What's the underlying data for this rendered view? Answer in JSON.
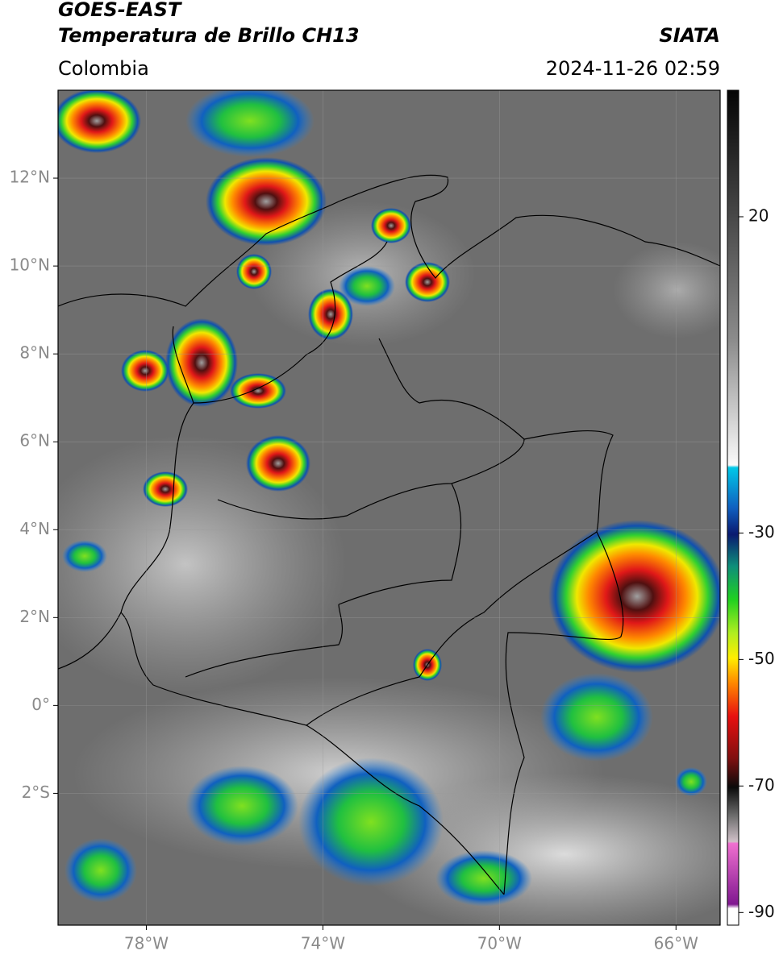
{
  "header": {
    "title": "GOES-EAST",
    "subtitle": "Temperatura de Brillo CH13",
    "source": "SIATA",
    "region": "Colombia",
    "timestamp": "2024-11-26 02:59"
  },
  "map": {
    "xlim": [
      -80,
      -65
    ],
    "ylim": [
      -5,
      14
    ],
    "xticks": [
      {
        "value": -78,
        "label": "78°W"
      },
      {
        "value": -74,
        "label": "74°W"
      },
      {
        "value": -70,
        "label": "70°W"
      },
      {
        "value": -66,
        "label": "66°W"
      }
    ],
    "yticks": [
      {
        "value": 12,
        "label": "12°N"
      },
      {
        "value": 10,
        "label": "10°N"
      },
      {
        "value": 8,
        "label": "8°N"
      },
      {
        "value": 6,
        "label": "6°N"
      },
      {
        "value": 4,
        "label": "4°N"
      },
      {
        "value": 2,
        "label": "2°N"
      },
      {
        "value": 0,
        "label": "0°"
      },
      {
        "value": -2,
        "label": "2°S"
      }
    ]
  },
  "colorbar": {
    "range": [
      -92,
      40
    ],
    "ticks": [
      20,
      -30,
      -50,
      -70,
      -90
    ]
  }
}
